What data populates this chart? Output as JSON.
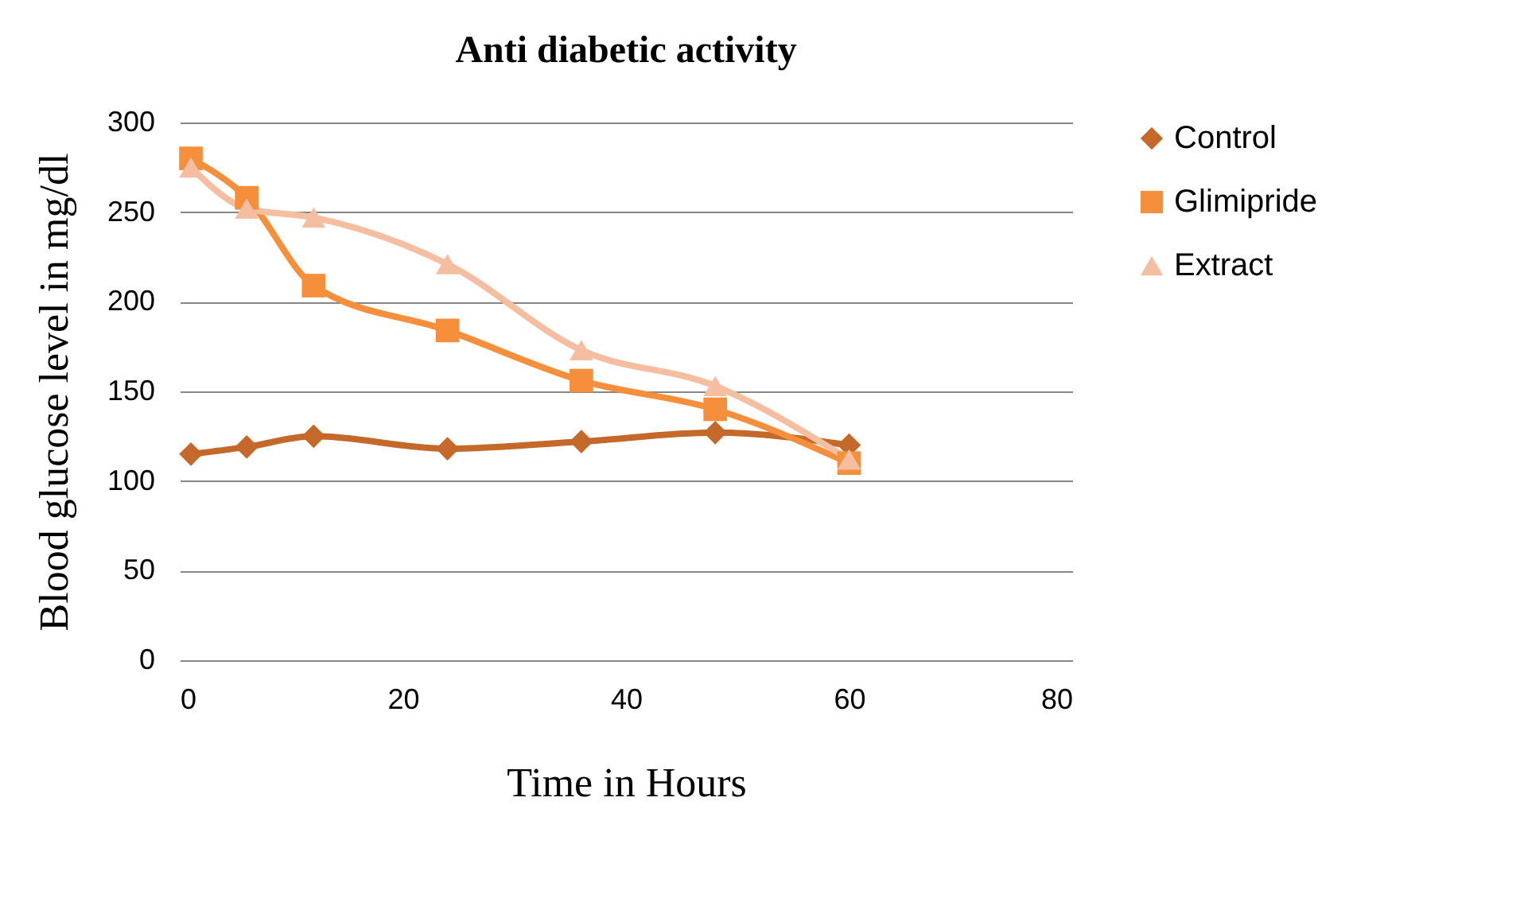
{
  "chart_data": {
    "type": "line",
    "title": "Anti diabetic activity",
    "xlabel": "Time in Hours",
    "ylabel": "Blood glucose level in mg/dl",
    "x": [
      1,
      6,
      12,
      24,
      36,
      48,
      60
    ],
    "series": [
      {
        "name": "Control",
        "color": "#c5692b",
        "marker": "diamond",
        "values": [
          115,
          119,
          125,
          118,
          122,
          127,
          120
        ]
      },
      {
        "name": "Glimipride",
        "color": "#f58f3c",
        "marker": "square",
        "values": [
          280,
          258,
          209,
          184,
          156,
          140,
          110
        ]
      },
      {
        "name": "Extract",
        "color": "#f6bea0",
        "marker": "triangle",
        "values": [
          275,
          252,
          247,
          221,
          173,
          153,
          112
        ]
      }
    ],
    "xlim": [
      0,
      80
    ],
    "xticks": [
      0,
      20,
      40,
      60,
      80
    ],
    "ylim": [
      0,
      300
    ],
    "yticks": [
      0,
      50,
      100,
      150,
      200,
      250,
      300
    ],
    "grid": "y",
    "legend": "right"
  }
}
